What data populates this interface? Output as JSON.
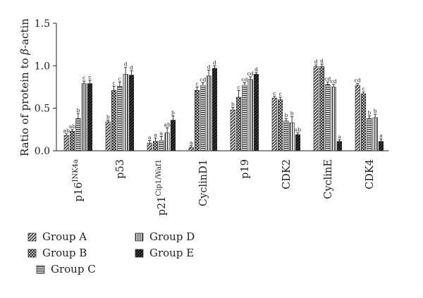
{
  "chart_data": {
    "type": "bar",
    "ylabel": "Ratio of protein to β-actin",
    "ylabel_parts": {
      "before": "Ratio of protein to ",
      "symbol": "β",
      "after": "-actin"
    },
    "ylim": [
      0,
      1.5
    ],
    "yticks": [
      "0.0",
      "0.5",
      "1.0",
      "1.5"
    ],
    "categories": [
      {
        "id": "p16",
        "base": "p16",
        "sup": "INK4a"
      },
      {
        "id": "p53",
        "base": "p53",
        "sup": ""
      },
      {
        "id": "p21",
        "base": "p21",
        "sup": "Cip1/Waf1"
      },
      {
        "id": "cyclind1",
        "base": "CyclinD1",
        "sup": ""
      },
      {
        "id": "p19",
        "base": "p19",
        "sup": ""
      },
      {
        "id": "cdk2",
        "base": "CDK2",
        "sup": ""
      },
      {
        "id": "cycline",
        "base": "CyclinE",
        "sup": ""
      },
      {
        "id": "cdk4",
        "base": "CDK4",
        "sup": ""
      }
    ],
    "series": [
      {
        "name": "Group A",
        "pattern": "diag",
        "values": [
          0.18,
          0.34,
          0.09,
          0.04,
          0.48,
          0.62,
          0.99,
          0.77
        ],
        "errors": [
          0.02,
          0.02,
          0.03,
          0.02,
          0.03,
          0.02,
          0.02,
          0.02
        ],
        "labels": [
          "ab",
          "b",
          "a",
          "a",
          "b",
          "c",
          "d",
          "cd"
        ]
      },
      {
        "name": "Group B",
        "pattern": "cross",
        "values": [
          0.23,
          0.71,
          0.11,
          0.71,
          0.63,
          0.6,
          0.99,
          0.67
        ],
        "errors": [
          0.02,
          0.05,
          0.04,
          0.04,
          0.08,
          0.03,
          0.03,
          0.02
        ],
        "labels": [
          "ab",
          "c",
          "a",
          "c",
          "c",
          "c",
          "d",
          "c"
        ]
      },
      {
        "name": "Group C",
        "pattern": "hlines",
        "values": [
          0.38,
          0.76,
          0.12,
          0.77,
          0.77,
          0.35,
          0.78,
          0.38
        ],
        "errors": [
          0.06,
          0.05,
          0.05,
          0.03,
          0.03,
          0.03,
          0.03,
          0.03
        ],
        "labels": [
          "b",
          "c",
          "a",
          "cd",
          "cd",
          "b",
          "cd",
          "b"
        ]
      },
      {
        "name": "Group D",
        "pattern": "vlines",
        "values": [
          0.79,
          0.9,
          0.21,
          0.88,
          0.84,
          0.33,
          0.75,
          0.39
        ],
        "errors": [
          0.03,
          0.08,
          0.06,
          0.07,
          0.03,
          0.07,
          0.03,
          0.04
        ],
        "labels": [
          "c",
          "d",
          "ab",
          "d",
          "cd",
          "b",
          "cd",
          "b"
        ]
      },
      {
        "name": "Group E",
        "pattern": "dense",
        "values": [
          0.79,
          0.89,
          0.36,
          0.97,
          0.9,
          0.19,
          0.11,
          0.11
        ],
        "errors": [
          0.04,
          0.05,
          0.05,
          0.03,
          0.02,
          0.02,
          0.02,
          0.03
        ],
        "labels": [
          "c",
          "d",
          "b",
          "d",
          "d",
          "ab",
          "a",
          "a"
        ]
      }
    ],
    "legend": {
      "position": "bottom"
    },
    "grid": false
  }
}
